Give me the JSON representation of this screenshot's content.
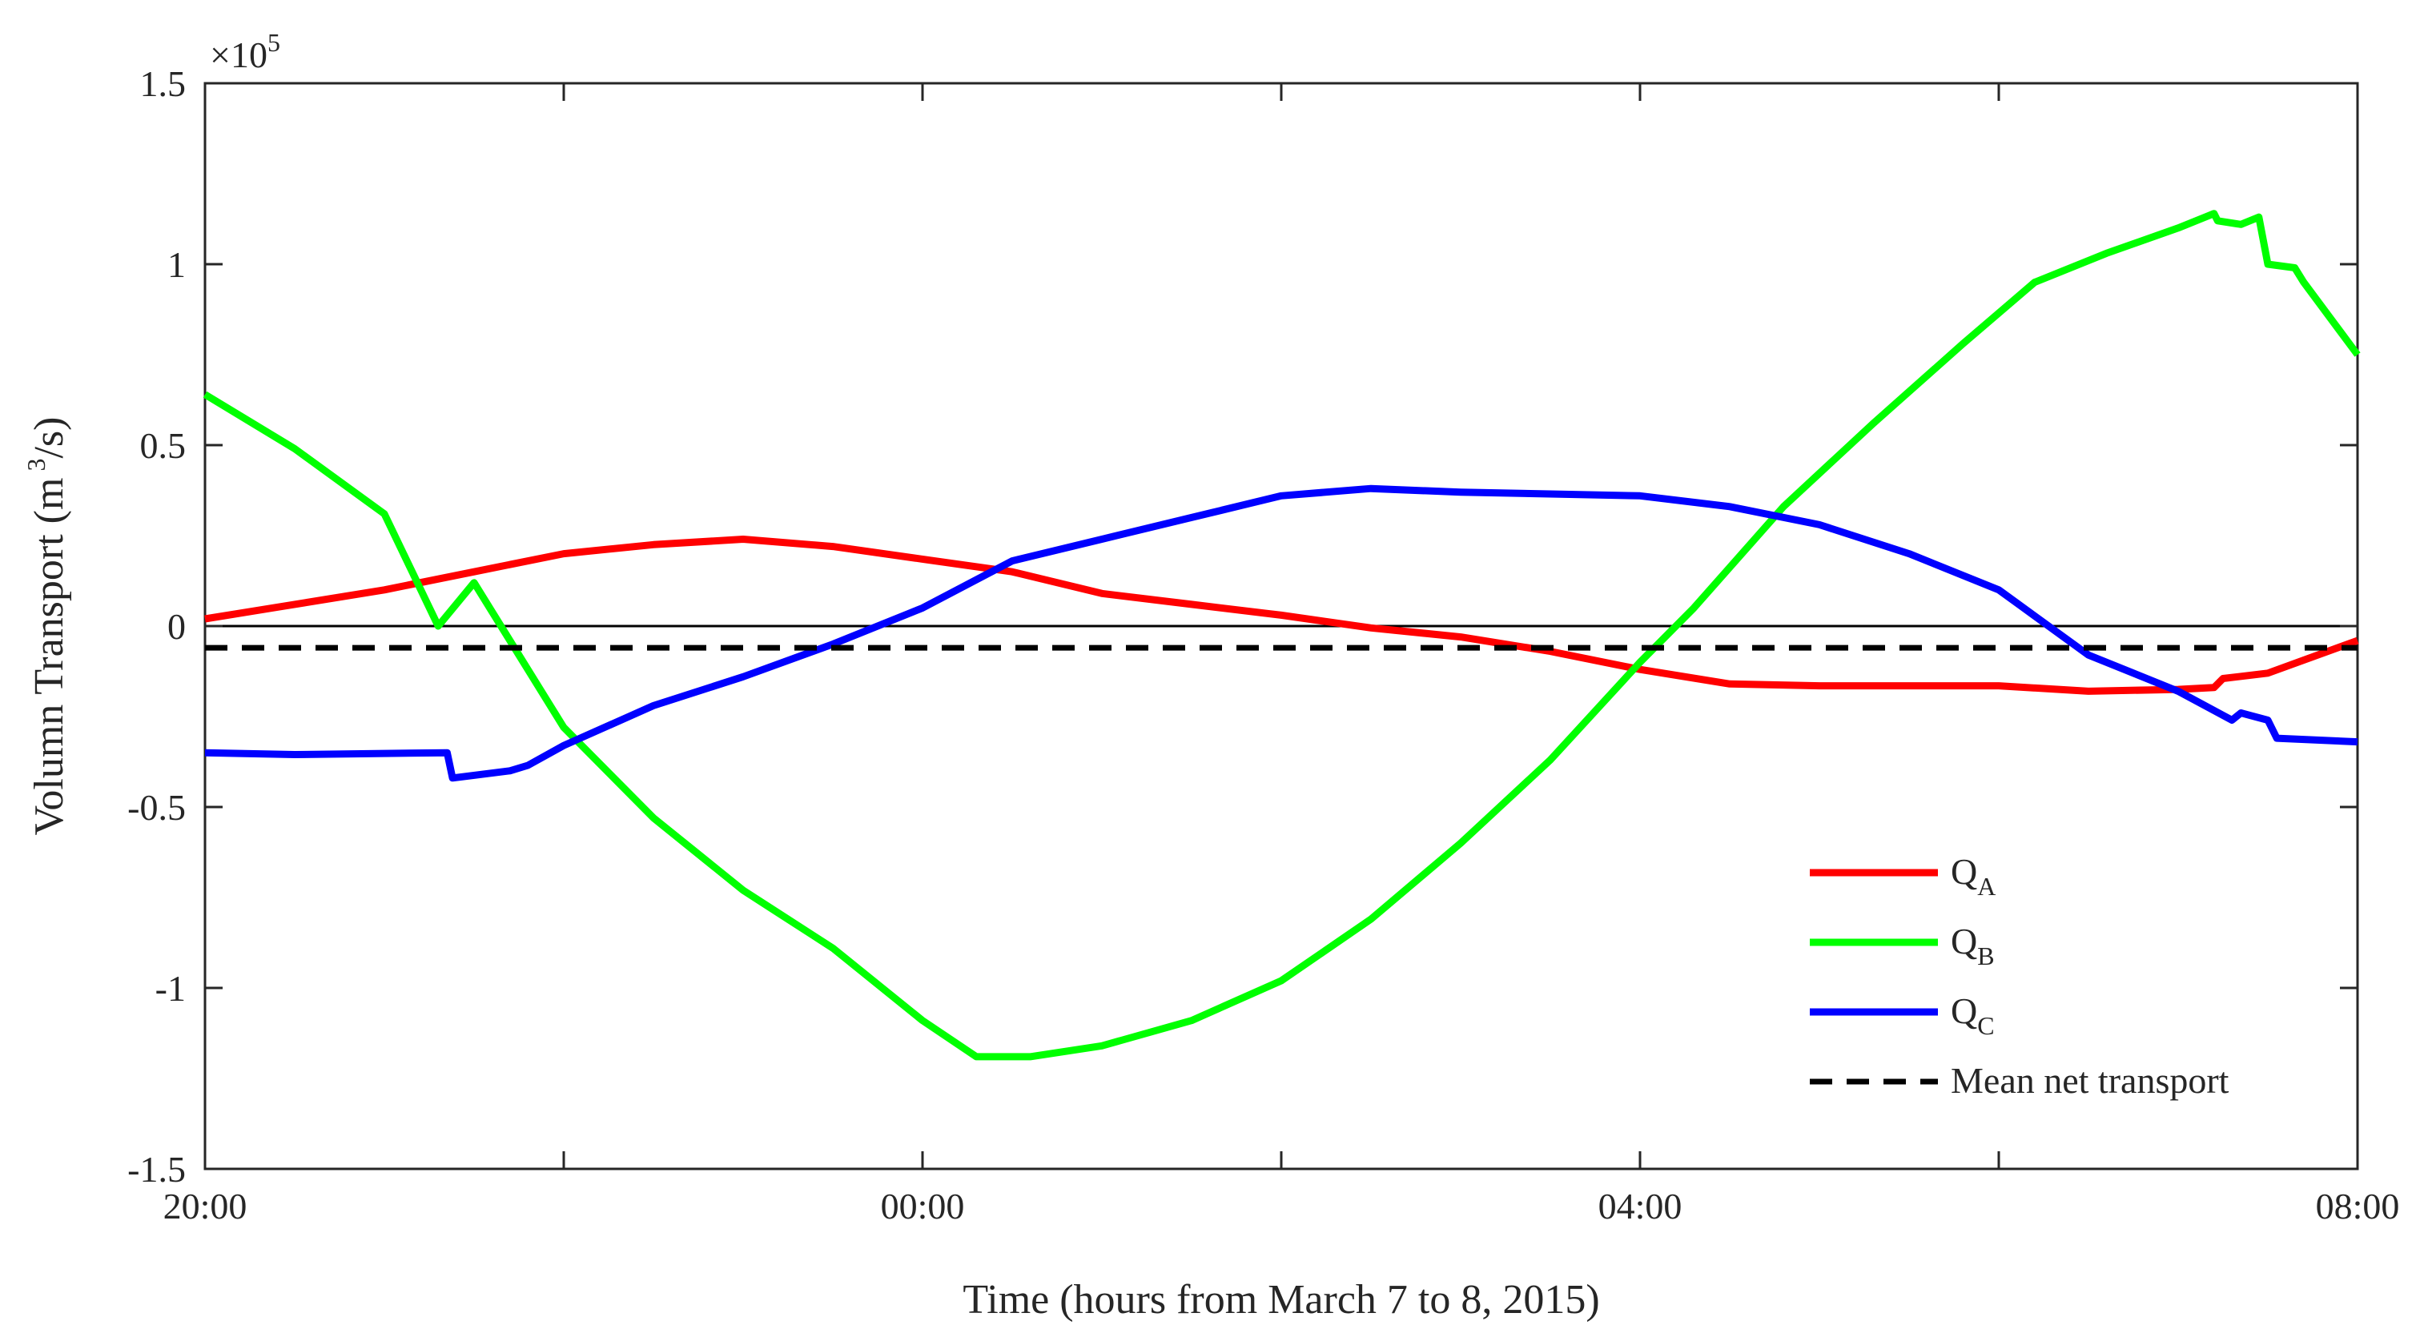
{
  "chart_data": {
    "type": "line",
    "title": "",
    "xlabel": "Time (hours from March 7 to 8, 2015)",
    "ylabel_main": "Volumn Transport (m",
    "ylabel_sup": "3",
    "ylabel_tail": "/s)",
    "y_multiplier_base": "×10",
    "y_multiplier_exp": "5",
    "xlim": [
      0,
      12
    ],
    "ylim": [
      -1.5,
      1.5
    ],
    "x_ticks": [
      {
        "value": 0,
        "label": "20:00"
      },
      {
        "value": 2,
        "label": ""
      },
      {
        "value": 4,
        "label": "00:00"
      },
      {
        "value": 6,
        "label": ""
      },
      {
        "value": 8,
        "label": "04:00"
      },
      {
        "value": 10,
        "label": ""
      },
      {
        "value": 12,
        "label": "08:00"
      }
    ],
    "y_ticks": [
      {
        "value": -1.5,
        "label": "-1.5"
      },
      {
        "value": -1,
        "label": "-1"
      },
      {
        "value": -0.5,
        "label": "-0.5"
      },
      {
        "value": 0,
        "label": "0"
      },
      {
        "value": 0.5,
        "label": "0.5"
      },
      {
        "value": 1,
        "label": "1"
      },
      {
        "value": 1.5,
        "label": "1.5"
      }
    ],
    "grid": false,
    "zero_line": true,
    "legend_position": "bottom-right",
    "series": [
      {
        "name": "Q",
        "name_sub": "A",
        "color": "#ff0000",
        "style": "solid",
        "points": [
          [
            0,
            0.02
          ],
          [
            0.5,
            0.06
          ],
          [
            1,
            0.1
          ],
          [
            1.5,
            0.15
          ],
          [
            2,
            0.2
          ],
          [
            2.5,
            0.225
          ],
          [
            3,
            0.24
          ],
          [
            3.5,
            0.22
          ],
          [
            4,
            0.185
          ],
          [
            4.5,
            0.15
          ],
          [
            5,
            0.09
          ],
          [
            5.5,
            0.06
          ],
          [
            6,
            0.03
          ],
          [
            6.5,
            -0.005
          ],
          [
            7,
            -0.03
          ],
          [
            7.5,
            -0.07
          ],
          [
            8,
            -0.12
          ],
          [
            8.5,
            -0.16
          ],
          [
            9,
            -0.165
          ],
          [
            9.5,
            -0.165
          ],
          [
            10,
            -0.165
          ],
          [
            10.5,
            -0.18
          ],
          [
            11,
            -0.175
          ],
          [
            11.2,
            -0.17
          ],
          [
            11.25,
            -0.145
          ],
          [
            11.5,
            -0.13
          ],
          [
            12,
            -0.04
          ]
        ]
      },
      {
        "name": "Q",
        "name_sub": "B",
        "color": "#00ff00",
        "style": "solid",
        "points": [
          [
            0,
            0.64
          ],
          [
            0.5,
            0.49
          ],
          [
            1,
            0.31
          ],
          [
            1.5,
            0.12
          ],
          [
            1.3,
            0.0
          ],
          [
            2,
            -0.28
          ],
          [
            2.5,
            -0.53
          ],
          [
            3,
            -0.73
          ],
          [
            3.5,
            -0.89
          ],
          [
            4,
            -1.09
          ],
          [
            4.3,
            -1.19
          ],
          [
            4.6,
            -1.19
          ],
          [
            5,
            -1.16
          ],
          [
            5.5,
            -1.09
          ],
          [
            6,
            -0.98
          ],
          [
            6.5,
            -0.81
          ],
          [
            7,
            -0.6
          ],
          [
            7.5,
            -0.37
          ],
          [
            8,
            -0.1
          ],
          [
            8.3,
            0.05
          ],
          [
            8.8,
            0.33
          ],
          [
            9.3,
            0.56
          ],
          [
            9.8,
            0.78
          ],
          [
            10.2,
            0.95
          ],
          [
            10.6,
            1.03
          ],
          [
            11,
            1.1
          ],
          [
            11.2,
            1.14
          ],
          [
            11.22,
            1.12
          ],
          [
            11.35,
            1.11
          ],
          [
            11.45,
            1.13
          ],
          [
            11.5,
            1.0
          ],
          [
            11.65,
            0.99
          ],
          [
            11.7,
            0.95
          ],
          [
            12,
            0.75
          ]
        ]
      },
      {
        "name": "Q",
        "name_sub": "C",
        "color": "#0000ff",
        "style": "solid",
        "points": [
          [
            0,
            -0.35
          ],
          [
            0.5,
            -0.355
          ],
          [
            1,
            -0.352
          ],
          [
            1.35,
            -0.35
          ],
          [
            1.38,
            -0.42
          ],
          [
            1.7,
            -0.4
          ],
          [
            1.8,
            -0.385
          ],
          [
            2,
            -0.33
          ],
          [
            2.5,
            -0.22
          ],
          [
            3,
            -0.14
          ],
          [
            3.5,
            -0.05
          ],
          [
            4,
            0.05
          ],
          [
            4.5,
            0.18
          ],
          [
            5,
            0.24
          ],
          [
            5.5,
            0.3
          ],
          [
            6,
            0.36
          ],
          [
            6.5,
            0.38
          ],
          [
            7,
            0.37
          ],
          [
            7.5,
            0.365
          ],
          [
            8,
            0.36
          ],
          [
            8.5,
            0.33
          ],
          [
            9,
            0.28
          ],
          [
            9.5,
            0.2
          ],
          [
            10,
            0.1
          ],
          [
            10.5,
            -0.08
          ],
          [
            11,
            -0.18
          ],
          [
            11.3,
            -0.26
          ],
          [
            11.35,
            -0.24
          ],
          [
            11.5,
            -0.26
          ],
          [
            11.55,
            -0.31
          ],
          [
            12,
            -0.32
          ]
        ]
      },
      {
        "name": "Mean net transport",
        "name_sub": "",
        "color": "#000000",
        "style": "dashed",
        "points": [
          [
            0,
            -0.06
          ],
          [
            12,
            -0.06
          ]
        ]
      }
    ]
  }
}
